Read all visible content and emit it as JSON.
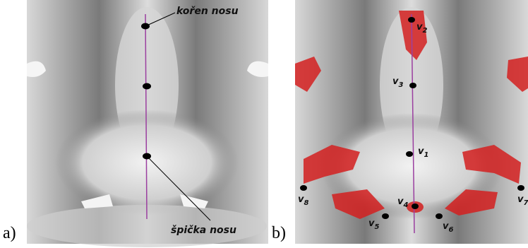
{
  "panel_a": {
    "caption": "a)",
    "labels": {
      "root": "kořen nosu",
      "tip": "špička nosu"
    }
  },
  "panel_b": {
    "caption": "b)",
    "points": [
      {
        "letter": "v",
        "index": "1"
      },
      {
        "letter": "v",
        "index": "2"
      },
      {
        "letter": "v",
        "index": "3"
      },
      {
        "letter": "v",
        "index": "4"
      },
      {
        "letter": "v",
        "index": "5"
      },
      {
        "letter": "v",
        "index": "6"
      },
      {
        "letter": "v",
        "index": "7"
      },
      {
        "letter": "v",
        "index": "8"
      }
    ]
  }
}
